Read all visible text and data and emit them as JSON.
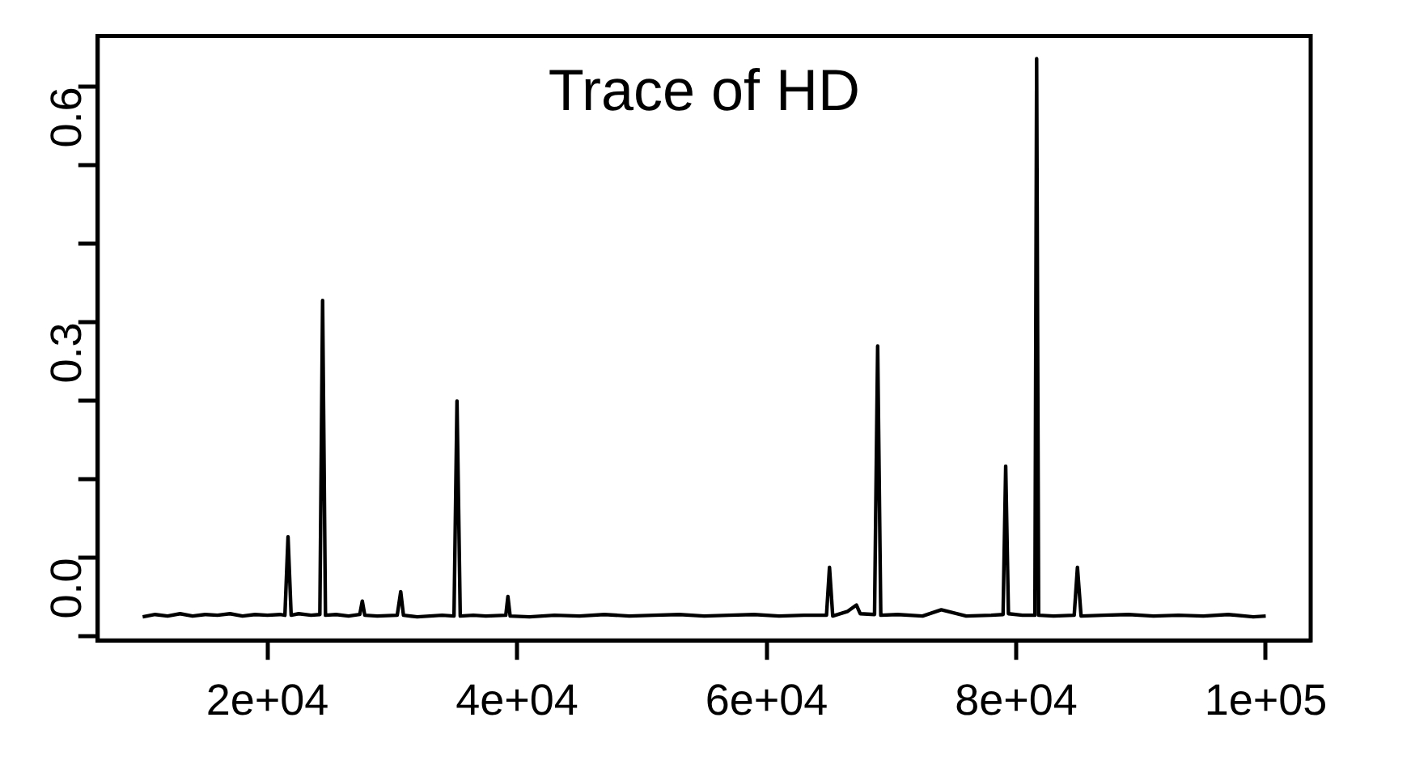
{
  "chart_data": {
    "type": "line",
    "title": "Trace of HD",
    "x": [
      10000,
      11000,
      12000,
      13000,
      14000,
      15000,
      16000,
      17000,
      18000,
      19000,
      20000,
      21000,
      21400,
      21650,
      21900,
      22500,
      23500,
      24200,
      24420,
      24650,
      25500,
      26500,
      27400,
      27600,
      27800,
      28800,
      30400,
      30680,
      30900,
      32000,
      33000,
      34000,
      34950,
      35190,
      35450,
      36500,
      37500,
      39100,
      39270,
      39450,
      41000,
      43000,
      45000,
      47000,
      49000,
      51000,
      53000,
      55000,
      57000,
      59000,
      61000,
      63000,
      64800,
      65040,
      65300,
      66500,
      67200,
      67500,
      68650,
      68900,
      69150,
      70500,
      72500,
      74000,
      76000,
      78000,
      78950,
      79160,
      79380,
      80500,
      81500,
      81640,
      81800,
      83000,
      84650,
      84910,
      85200,
      87000,
      89000,
      91000,
      93000,
      95000,
      97000,
      99000,
      100000
    ],
    "series": [
      {
        "color": "#000000",
        "values": [
          -0.075,
          -0.072,
          -0.074,
          -0.071,
          -0.074,
          -0.072,
          -0.073,
          -0.071,
          -0.074,
          -0.072,
          -0.073,
          -0.072,
          -0.073,
          0.027,
          -0.073,
          -0.071,
          -0.073,
          -0.072,
          0.328,
          -0.073,
          -0.072,
          -0.074,
          -0.072,
          -0.055,
          -0.073,
          -0.074,
          -0.073,
          -0.043,
          -0.073,
          -0.075,
          -0.074,
          -0.073,
          -0.074,
          0.2,
          -0.074,
          -0.073,
          -0.074,
          -0.073,
          -0.049,
          -0.074,
          -0.075,
          -0.073,
          -0.074,
          -0.072,
          -0.074,
          -0.073,
          -0.072,
          -0.074,
          -0.073,
          -0.072,
          -0.074,
          -0.073,
          -0.073,
          -0.012,
          -0.074,
          -0.068,
          -0.06,
          -0.071,
          -0.072,
          0.27,
          -0.073,
          -0.072,
          -0.074,
          -0.066,
          -0.074,
          -0.073,
          -0.072,
          0.117,
          -0.071,
          -0.073,
          -0.073,
          0.636,
          -0.073,
          -0.074,
          -0.073,
          -0.012,
          -0.074,
          -0.073,
          -0.072,
          -0.074,
          -0.073,
          -0.074,
          -0.072,
          -0.075,
          -0.074
        ]
      }
    ],
    "xlim": [
      6400,
      103600
    ],
    "ylim": [
      -0.105,
      0.665
    ],
    "xticks": [
      {
        "value": 20000,
        "label": "2e+04"
      },
      {
        "value": 40000,
        "label": "4e+04"
      },
      {
        "value": 60000,
        "label": "6e+04"
      },
      {
        "value": 80000,
        "label": "8e+04"
      },
      {
        "value": 100000,
        "label": "1e+05"
      }
    ],
    "yticks": [
      {
        "value": -0.1,
        "label": null
      },
      {
        "value": 0,
        "label": "0.0"
      },
      {
        "value": 0.1,
        "label": null
      },
      {
        "value": 0.2,
        "label": null
      },
      {
        "value": 0.3,
        "label": "0.3"
      },
      {
        "value": 0.4,
        "label": null
      },
      {
        "value": 0.5,
        "label": null
      },
      {
        "value": 0.6,
        "label": "0.6"
      }
    ],
    "grid": false,
    "legend": false,
    "marker": "none",
    "line_style": "solid"
  }
}
